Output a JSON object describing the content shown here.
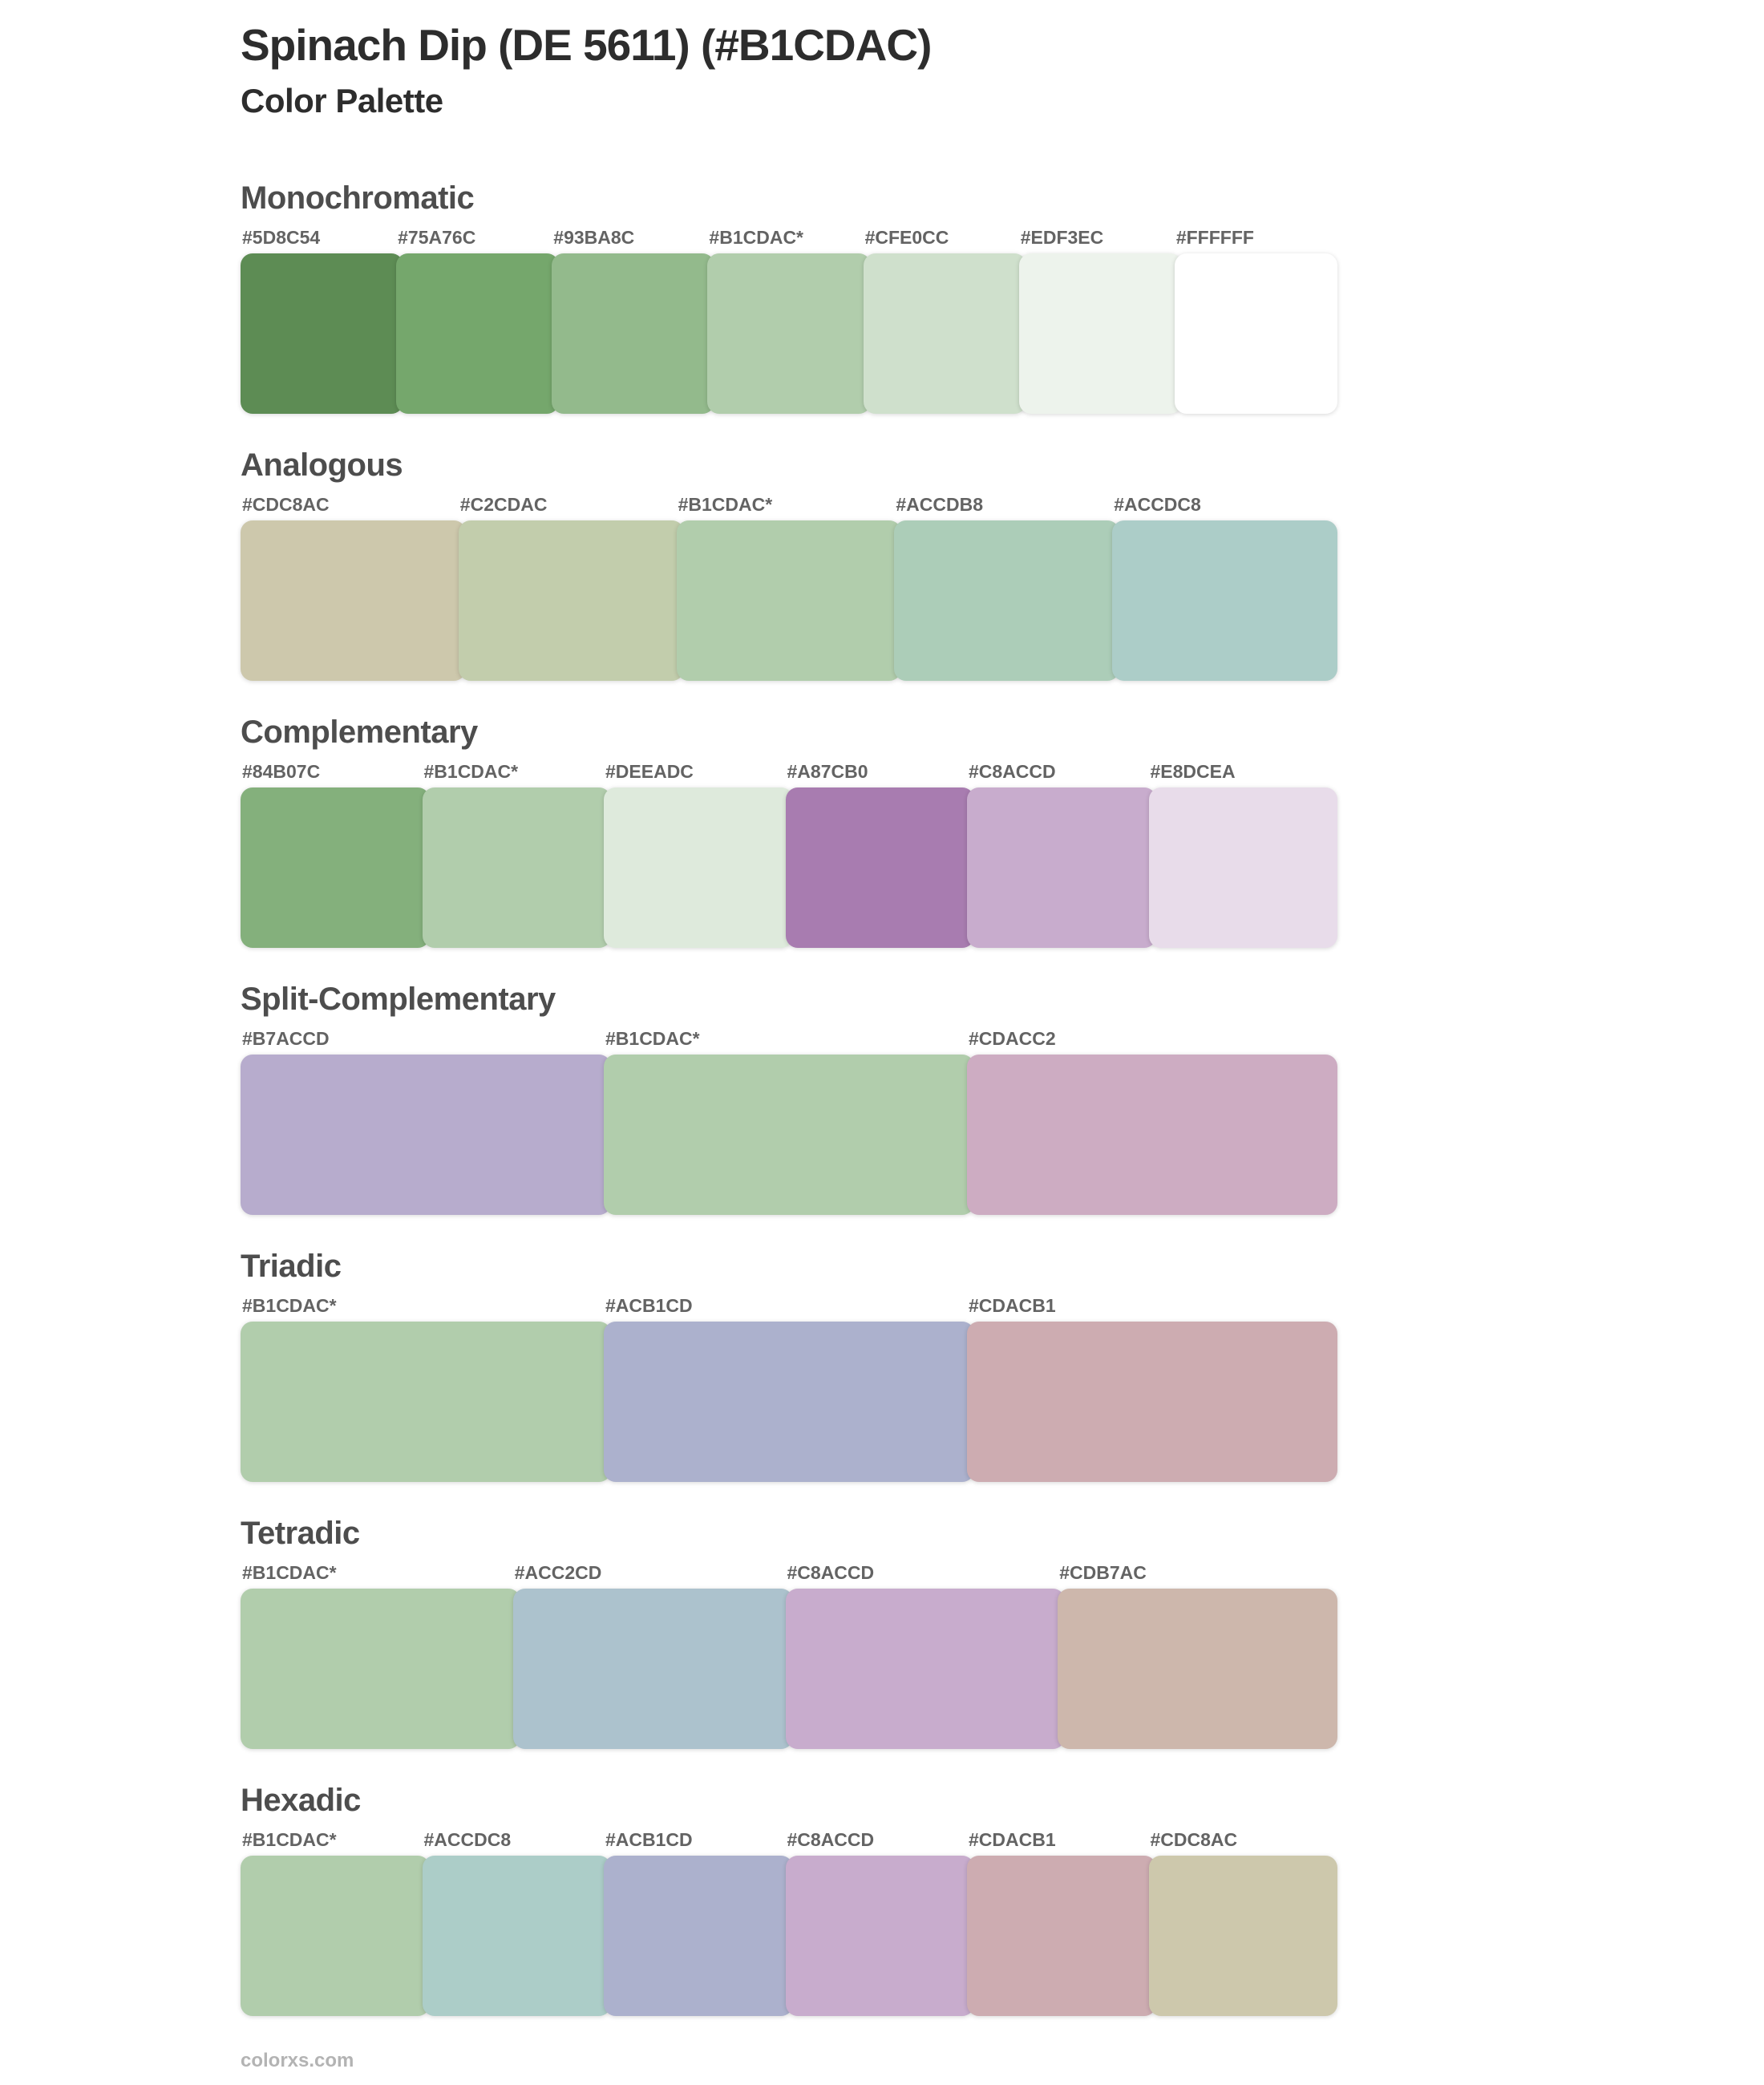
{
  "page": {
    "title": "Spinach Dip (DE 5611) (#B1CDAC)",
    "subtitle": "Color Palette",
    "base_color": "#B1CDAC",
    "footer_link": "colorxs.com",
    "text_colors": {
      "title": "#2d2d2d",
      "section_heading": "#4d4d4d",
      "swatch_label": "#636363",
      "footer": "#b3b3b3"
    }
  },
  "sections": [
    {
      "name": "Monochromatic",
      "swatches": [
        {
          "label": "#5D8C54",
          "color": "#5D8C54"
        },
        {
          "label": "#75A76C",
          "color": "#75A76C"
        },
        {
          "label": "#93BA8C",
          "color": "#93BA8C"
        },
        {
          "label": "#B1CDAC*",
          "color": "#B1CDAC"
        },
        {
          "label": "#CFE0CC",
          "color": "#CFE0CC"
        },
        {
          "label": "#EDF3EC",
          "color": "#EDF3EC"
        },
        {
          "label": "#FFFFFF",
          "color": "#FFFFFF"
        }
      ]
    },
    {
      "name": "Analogous",
      "swatches": [
        {
          "label": "#CDC8AC",
          "color": "#CDC8AC"
        },
        {
          "label": "#C2CDAC",
          "color": "#C2CDAC"
        },
        {
          "label": "#B1CDAC*",
          "color": "#B1CDAC"
        },
        {
          "label": "#ACCDB8",
          "color": "#ACCDB8"
        },
        {
          "label": "#ACCDC8",
          "color": "#ACCDC8"
        }
      ]
    },
    {
      "name": "Complementary",
      "swatches": [
        {
          "label": "#84B07C",
          "color": "#84B07C"
        },
        {
          "label": "#B1CDAC*",
          "color": "#B1CDAC"
        },
        {
          "label": "#DEEADC",
          "color": "#DEEADC"
        },
        {
          "label": "#A87CB0",
          "color": "#A87CB0"
        },
        {
          "label": "#C8ACCD",
          "color": "#C8ACCD"
        },
        {
          "label": "#E8DCEA",
          "color": "#E8DCEA"
        }
      ]
    },
    {
      "name": "Split-Complementary",
      "swatches": [
        {
          "label": "#B7ACCD",
          "color": "#B7ACCD"
        },
        {
          "label": "#B1CDAC*",
          "color": "#B1CDAC"
        },
        {
          "label": "#CDACC2",
          "color": "#CDACC2"
        }
      ]
    },
    {
      "name": "Triadic",
      "swatches": [
        {
          "label": "#B1CDAC*",
          "color": "#B1CDAC"
        },
        {
          "label": "#ACB1CD",
          "color": "#ACB1CD"
        },
        {
          "label": "#CDACB1",
          "color": "#CDACB1"
        }
      ]
    },
    {
      "name": "Tetradic",
      "swatches": [
        {
          "label": "#B1CDAC*",
          "color": "#B1CDAC"
        },
        {
          "label": "#ACC2CD",
          "color": "#ACC2CD"
        },
        {
          "label": "#C8ACCD",
          "color": "#C8ACCD"
        },
        {
          "label": "#CDB7AC",
          "color": "#CDB7AC"
        }
      ]
    },
    {
      "name": "Hexadic",
      "swatches": [
        {
          "label": "#B1CDAC*",
          "color": "#B1CDAC"
        },
        {
          "label": "#ACCDC8",
          "color": "#ACCDC8"
        },
        {
          "label": "#ACB1CD",
          "color": "#ACB1CD"
        },
        {
          "label": "#C8ACCD",
          "color": "#C8ACCD"
        },
        {
          "label": "#CDACB1",
          "color": "#CDACB1"
        },
        {
          "label": "#CDC8AC",
          "color": "#CDC8AC"
        }
      ]
    }
  ]
}
